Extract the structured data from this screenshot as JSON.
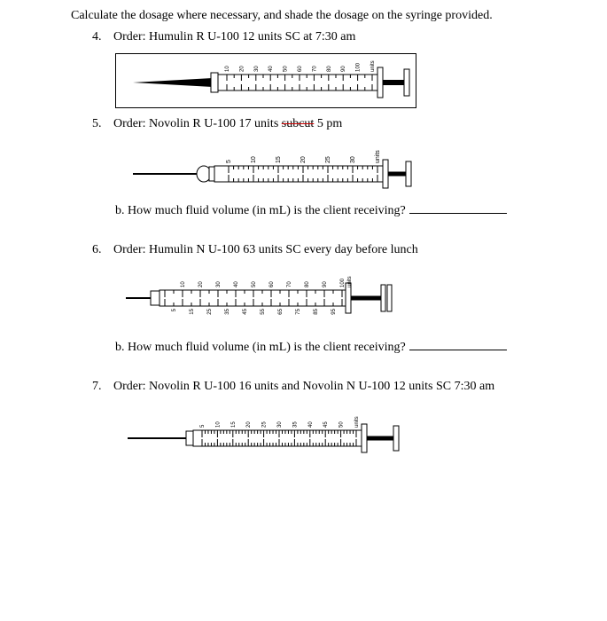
{
  "instruction": "Calculate the dosage where necessary, and shade the dosage on the syringe provided.",
  "q4": {
    "num": "4.",
    "text": "Order: Humulin R U-100 12 units SC at 7:30 am",
    "syringe": {
      "type": "syringe-diagram",
      "boxed": true,
      "ticks_top": [
        "10",
        "20",
        "30",
        "40",
        "50",
        "60",
        "70",
        "80",
        "90",
        "100",
        "units"
      ],
      "tick_rotation": -90,
      "needle_style": "filled-triangle",
      "barrel_color": "#ffffff",
      "outline_color": "#000000"
    }
  },
  "q5": {
    "num": "5.",
    "text_pre": "Order: Novolin R U-100 17 units ",
    "text_strike": "subcut",
    "text_post": " 5 pm",
    "syringe": {
      "type": "syringe-diagram",
      "boxed": false,
      "ticks_top": [
        "5",
        "10",
        "15",
        "20",
        "25",
        "30",
        "units"
      ],
      "tick_rotation": -90,
      "needle_style": "thin-line",
      "barrel_color": "#ffffff",
      "outline_color": "#000000"
    },
    "sub_b": "b. How much fluid volume (in mL) is the client receiving?"
  },
  "q6": {
    "num": "6.",
    "text": "Order: Humulin N U-100 63 units SC every day before lunch",
    "syringe": {
      "type": "syringe-diagram",
      "boxed": false,
      "ticks_top": [
        "10",
        "20",
        "30",
        "40",
        "50",
        "60",
        "70",
        "80",
        "90",
        "100",
        "units"
      ],
      "ticks_bottom": [
        "5",
        "15",
        "25",
        "35",
        "45",
        "55",
        "65",
        "75",
        "85",
        "95"
      ],
      "tick_rotation": -90,
      "needle_style": "short-rect",
      "barrel_color": "#ffffff",
      "outline_color": "#000000"
    },
    "sub_b": "b. How much fluid volume (in mL) is the client receiving?"
  },
  "q7": {
    "num": "7.",
    "text": "Order: Novolin R U-100 16 units and Novolin N U-100 12 units SC 7:30 am",
    "syringe": {
      "type": "syringe-diagram",
      "boxed": false,
      "ticks_top": [
        "5",
        "10",
        "15",
        "20",
        "25",
        "30",
        "35",
        "40",
        "45",
        "50",
        "units"
      ],
      "tick_rotation": -90,
      "needle_style": "thin-line",
      "barrel_color": "#ffffff",
      "outline_color": "#000000"
    }
  }
}
